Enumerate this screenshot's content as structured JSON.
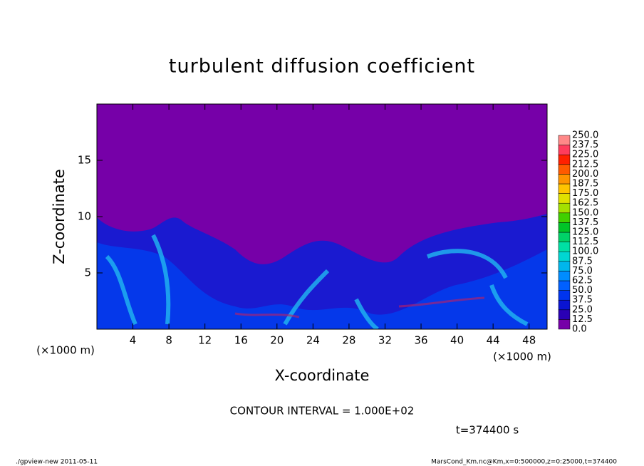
{
  "chart_data": {
    "type": "heatmap",
    "title": "turbulent diffusion coefficient",
    "xlabel": "X-coordinate",
    "ylabel": "Z-coordinate",
    "x_unit_labels": [
      "(×1000 m)",
      "(×1000 m)"
    ],
    "xlim": [
      0,
      50
    ],
    "ylim": [
      0,
      20
    ],
    "xticks": [
      4,
      8,
      12,
      16,
      20,
      24,
      28,
      32,
      36,
      40,
      44,
      48
    ],
    "yticks": [
      5,
      10,
      15
    ],
    "colorbar": {
      "levels": [
        {
          "value": 0,
          "label": "0.0"
        },
        12.5,
        {
          "value": 25,
          "label": "25.0"
        },
        37.5,
        {
          "value": 50,
          "label": "50.0"
        },
        62.5,
        {
          "value": 75,
          "label": "75.0"
        },
        87.5,
        {
          "value": 100,
          "label": "100.0"
        },
        112.5,
        {
          "value": 125,
          "label": "125.0"
        },
        137.5,
        {
          "value": 150,
          "label": "150.0"
        },
        162.5,
        {
          "value": 175,
          "label": "175.0"
        },
        187.5,
        {
          "value": 200,
          "label": "200.0"
        },
        212.5,
        {
          "value": 225,
          "label": "225.0"
        },
        237.5,
        {
          "value": 250,
          "label": "250.0"
        }
      ],
      "colors": [
        "#7600a8",
        "#2a00b4",
        "#0a14d2",
        "#0034ee",
        "#0060ff",
        "#008cff",
        "#00b6ec",
        "#00d6d2",
        "#00e0a4",
        "#00d268",
        "#00c428",
        "#40d000",
        "#a4e000",
        "#e0e000",
        "#ffc400",
        "#ff9400",
        "#ff5a00",
        "#ff2000",
        "#ff3c5c",
        "#ff8888"
      ]
    },
    "annotations": [
      "CONTOUR INTERVAL = 1.000E+02",
      "t=374400 s"
    ],
    "footer": [
      "./gpview-new  2011-05-11",
      "MarsCond_Km.nc@Km,x=0:500000,z=0:25000,t=374400"
    ]
  }
}
